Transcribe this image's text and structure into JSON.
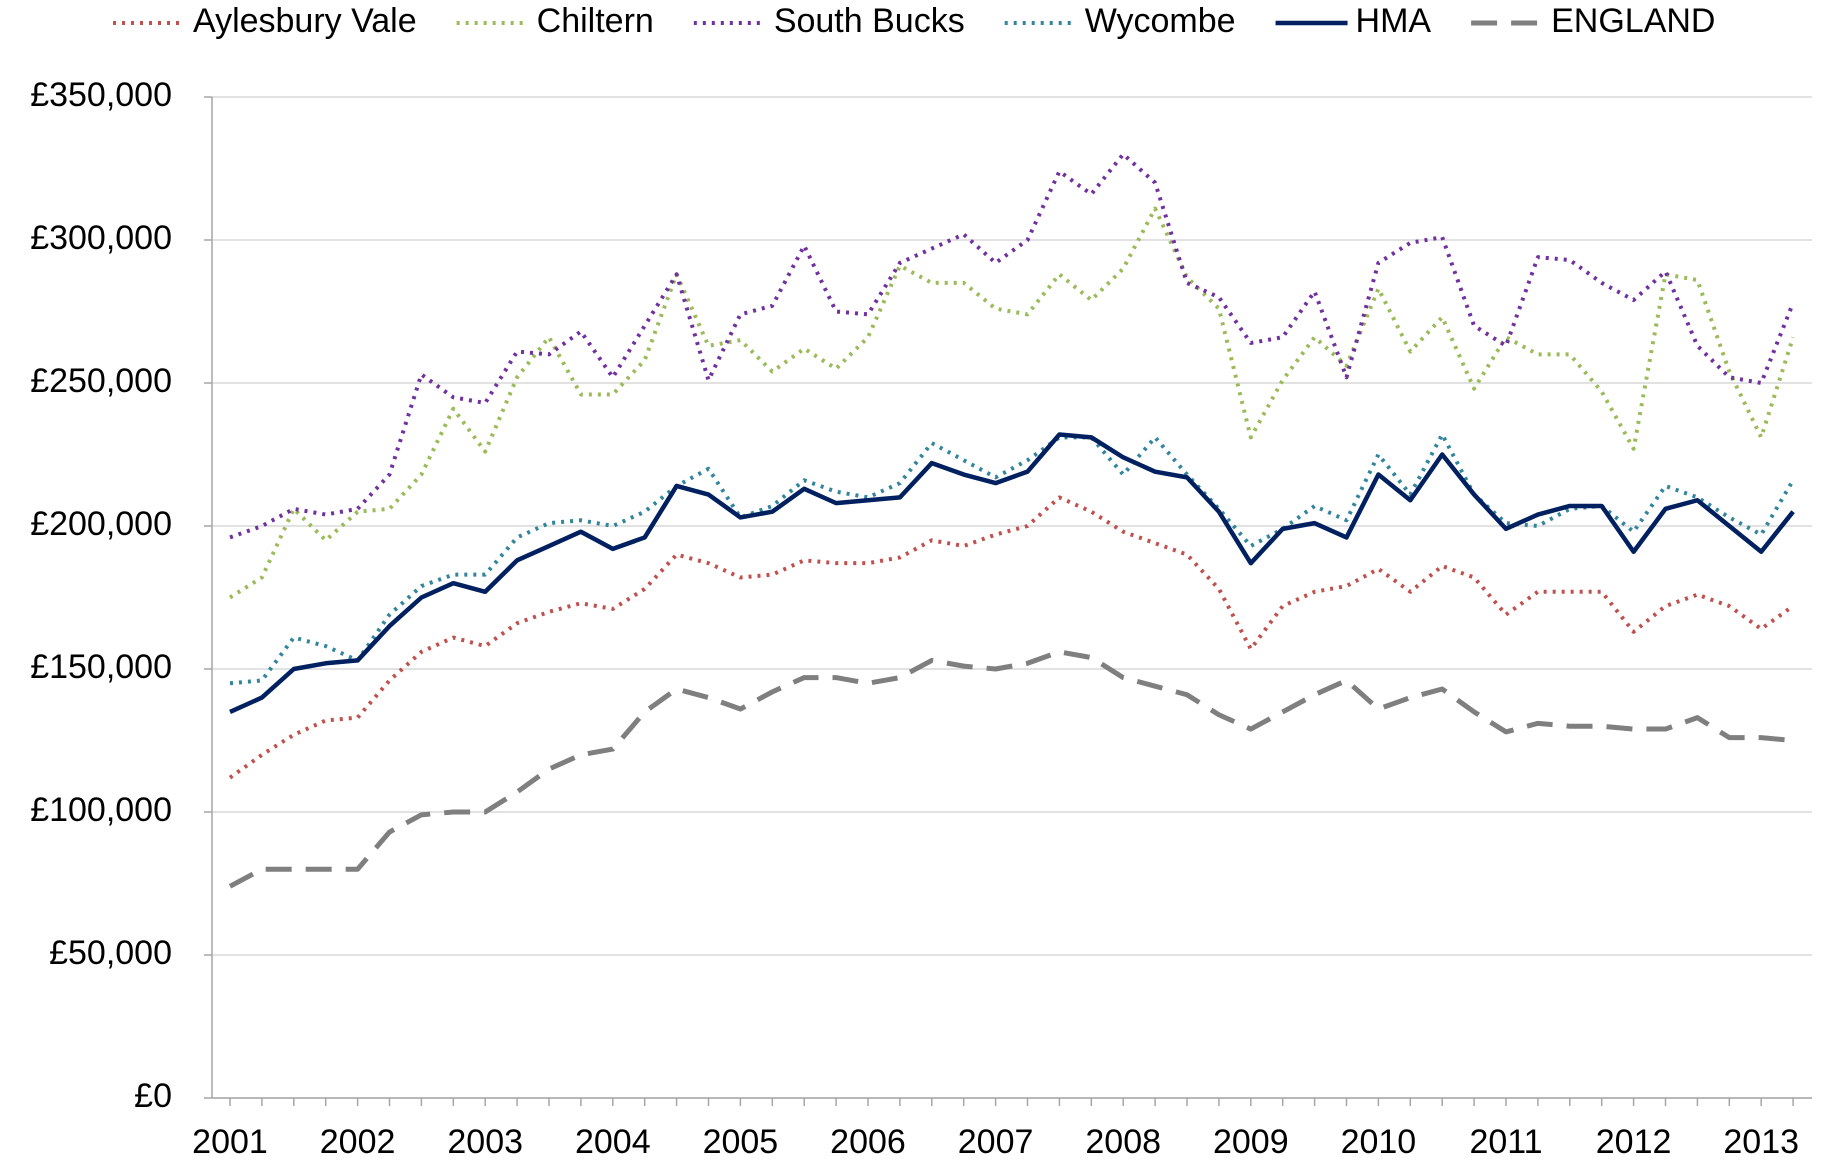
{
  "chart_data": {
    "type": "line",
    "categories": [
      "2001",
      null,
      null,
      null,
      "2002",
      null,
      null,
      null,
      "2003",
      null,
      null,
      null,
      "2004",
      null,
      null,
      null,
      "2005",
      null,
      null,
      null,
      "2006",
      null,
      null,
      null,
      "2007",
      null,
      null,
      null,
      "2008",
      null,
      null,
      null,
      "2009",
      null,
      null,
      null,
      "2010",
      null,
      null,
      null,
      "2011",
      null,
      null,
      null,
      "2012",
      null,
      null,
      null,
      "2013",
      null
    ],
    "ylim": [
      0,
      350000
    ],
    "yticks": [
      {
        "value": 0,
        "label": "£0"
      },
      {
        "value": 50000,
        "label": "£50,000"
      },
      {
        "value": 100000,
        "label": "£100,000"
      },
      {
        "value": 150000,
        "label": "£150,000"
      },
      {
        "value": 200000,
        "label": "£200,000"
      },
      {
        "value": 250000,
        "label": "£250,000"
      },
      {
        "value": 300000,
        "label": "£300,000"
      },
      {
        "value": 350000,
        "label": "£350,000"
      }
    ],
    "grid": true,
    "legend": "top",
    "series": [
      {
        "name": "Aylesbury Vale",
        "color": "#c0504d",
        "line_style": "dotted",
        "values": [
          112000,
          120000,
          127000,
          132000,
          133000,
          146000,
          156000,
          161000,
          158000,
          166000,
          170000,
          173000,
          171000,
          178000,
          190000,
          187000,
          182000,
          183000,
          188000,
          187000,
          187000,
          189000,
          195000,
          193000,
          197000,
          200000,
          210000,
          205000,
          198000,
          194000,
          190000,
          178000,
          157000,
          172000,
          177000,
          179000,
          185000,
          177000,
          186000,
          182000,
          169000,
          177000,
          177000,
          177000,
          163000,
          172000,
          176000,
          172000,
          164000,
          172000
        ]
      },
      {
        "name": "Chiltern",
        "color": "#9bbb59",
        "line_style": "dotted",
        "values": [
          175000,
          182000,
          206000,
          195000,
          205000,
          206000,
          218000,
          241000,
          226000,
          252000,
          266000,
          246000,
          246000,
          258000,
          288000,
          263000,
          265000,
          254000,
          262000,
          255000,
          266000,
          291000,
          285000,
          285000,
          276000,
          274000,
          288000,
          279000,
          290000,
          311000,
          287000,
          276000,
          231000,
          251000,
          266000,
          256000,
          283000,
          261000,
          273000,
          248000,
          266000,
          260000,
          260000,
          247000,
          227000,
          288000,
          286000,
          254000,
          231000,
          266000
        ]
      },
      {
        "name": "South Bucks",
        "color": "#7030a0",
        "line_style": "dotted",
        "values": [
          196000,
          200000,
          206000,
          204000,
          206000,
          218000,
          253000,
          245000,
          243000,
          261000,
          260000,
          268000,
          252000,
          270000,
          288000,
          251000,
          274000,
          277000,
          298000,
          275000,
          274000,
          292000,
          297000,
          302000,
          292000,
          300000,
          324000,
          316000,
          330000,
          320000,
          285000,
          280000,
          264000,
          266000,
          282000,
          252000,
          292000,
          299000,
          301000,
          270000,
          263000,
          294000,
          293000,
          285000,
          279000,
          289000,
          263000,
          252000,
          250000,
          278000
        ]
      },
      {
        "name": "Wycombe",
        "color": "#31859c",
        "line_style": "dotted",
        "values": [
          145000,
          146000,
          161000,
          158000,
          153000,
          169000,
          179000,
          183000,
          183000,
          196000,
          201000,
          202000,
          200000,
          205000,
          214000,
          220000,
          203000,
          207000,
          216000,
          212000,
          210000,
          215000,
          229000,
          223000,
          217000,
          223000,
          231000,
          231000,
          218000,
          231000,
          218000,
          206000,
          193000,
          199000,
          207000,
          202000,
          225000,
          211000,
          232000,
          211000,
          201000,
          200000,
          206000,
          207000,
          198000,
          214000,
          210000,
          203000,
          197000,
          216000
        ]
      },
      {
        "name": "HMA",
        "color": "#002060",
        "line_style": "solid",
        "values": [
          135000,
          140000,
          150000,
          152000,
          153000,
          165000,
          175000,
          180000,
          177000,
          188000,
          193000,
          198000,
          192000,
          196000,
          214000,
          211000,
          203000,
          205000,
          213000,
          208000,
          209000,
          210000,
          222000,
          218000,
          215000,
          219000,
          232000,
          231000,
          224000,
          219000,
          217000,
          205000,
          187000,
          199000,
          201000,
          196000,
          218000,
          209000,
          225000,
          211000,
          199000,
          204000,
          207000,
          207000,
          191000,
          206000,
          209000,
          200000,
          191000,
          205000
        ]
      },
      {
        "name": "ENGLAND",
        "color": "#7f7f7f",
        "line_style": "dashed",
        "values": [
          74000,
          80000,
          80000,
          80000,
          80000,
          93000,
          99000,
          100000,
          100000,
          107000,
          115000,
          120000,
          122000,
          135000,
          143000,
          140000,
          136000,
          142000,
          147000,
          147000,
          145000,
          147000,
          153000,
          151000,
          150000,
          152000,
          156000,
          154000,
          147000,
          144000,
          141000,
          134000,
          129000,
          135000,
          141000,
          146000,
          136000,
          140000,
          143000,
          135000,
          128000,
          131000,
          130000,
          130000,
          129000,
          129000,
          133000,
          126000,
          126000,
          125000
        ]
      }
    ]
  }
}
